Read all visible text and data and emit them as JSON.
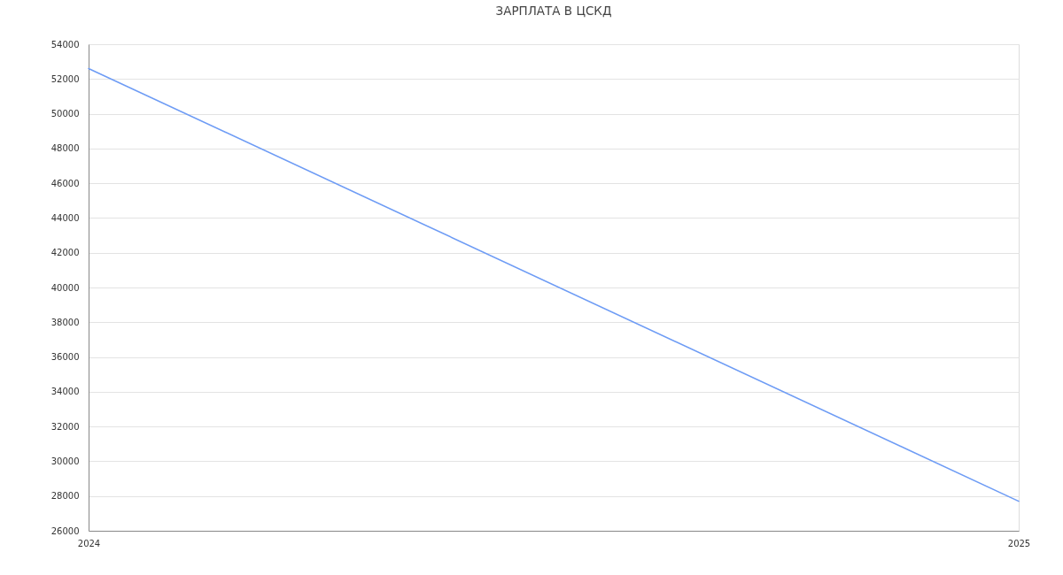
{
  "chart_data": {
    "type": "line",
    "title": "ЗАРПЛАТА В ЦСКД",
    "x": [
      "2024",
      "2025"
    ],
    "series": [
      {
        "color": "#6e9cf5",
        "values": [
          52600,
          27700
        ]
      }
    ],
    "xlim": [
      "2024",
      "2025"
    ],
    "xticks": [
      "2024",
      "2025"
    ],
    "ylim": [
      26000,
      54000
    ],
    "yticks": [
      26000,
      28000,
      30000,
      32000,
      34000,
      36000,
      38000,
      40000,
      42000,
      44000,
      46000,
      48000,
      50000,
      52000,
      54000
    ],
    "grid": "y",
    "line_style": "solid"
  }
}
